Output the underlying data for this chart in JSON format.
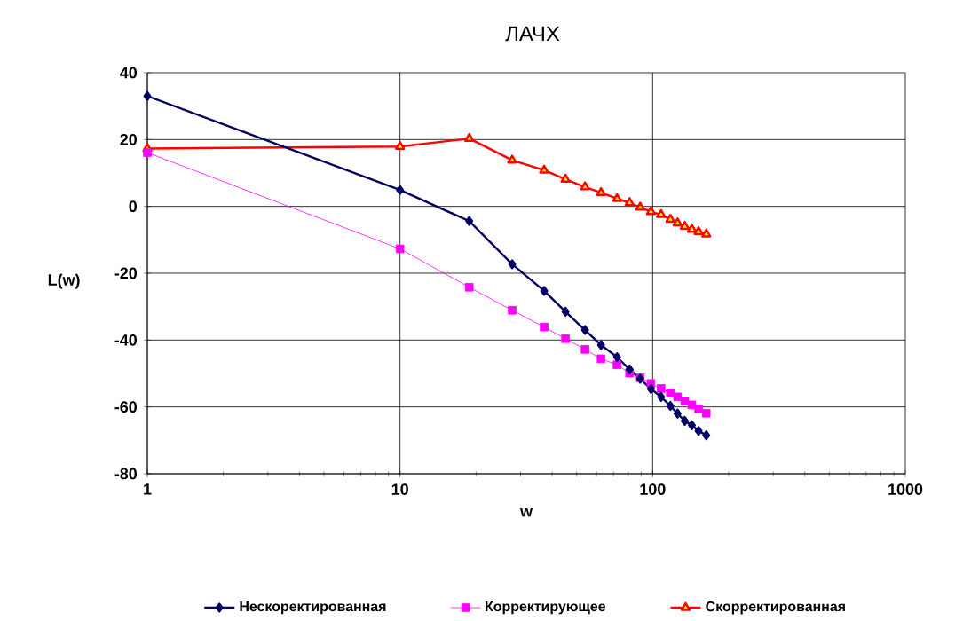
{
  "chart_data": {
    "type": "line",
    "title": "ЛАЧХ",
    "xlabel": "w",
    "ylabel": "L(w)",
    "x": [
      1,
      10,
      18.8,
      27.8,
      37.2,
      45.2,
      54,
      62.5,
      72.3,
      81,
      89.3,
      98.4,
      108,
      117.5,
      125.5,
      134,
      143,
      152,
      163
    ],
    "series": [
      {
        "name": "Нескоректированная",
        "color": "#000066",
        "marker": "diamond",
        "values": [
          33,
          4.9,
          -4.4,
          -17.3,
          -25.3,
          -31.5,
          -37,
          -41.5,
          -45.1,
          -48.8,
          -51.6,
          -54.6,
          -57,
          -59.7,
          -62,
          -64.2,
          -65.5,
          -67.2,
          -68.5
        ]
      },
      {
        "name": "Корректирующее",
        "color": "#ff00ff",
        "marker": "square",
        "values": [
          16.1,
          -12.7,
          -24.2,
          -31.1,
          -36.1,
          -39.6,
          -42.8,
          -45.6,
          -47.4,
          -49.9,
          -51.3,
          -53,
          -54.5,
          -55.8,
          -57,
          -58.2,
          -59.4,
          -60.6,
          -61.9
        ]
      },
      {
        "name": "Скорректированная",
        "color": "#ff0000",
        "marker": "triangle",
        "values": [
          17.3,
          17.9,
          20.3,
          13.8,
          10.8,
          8.1,
          5.8,
          4.1,
          2.3,
          1.1,
          -0.3,
          -1.6,
          -2.5,
          -3.9,
          -5,
          -6,
          -6.9,
          -7.6,
          -8.3
        ]
      }
    ],
    "log": "x",
    "xlim": [
      1,
      1000
    ],
    "xticks": [
      1,
      10,
      100,
      1000
    ],
    "ylim": [
      -80,
      40
    ],
    "yticks": [
      -80,
      -60,
      -40,
      -20,
      0,
      20,
      40
    ],
    "grid": true,
    "legend": "bottom"
  }
}
